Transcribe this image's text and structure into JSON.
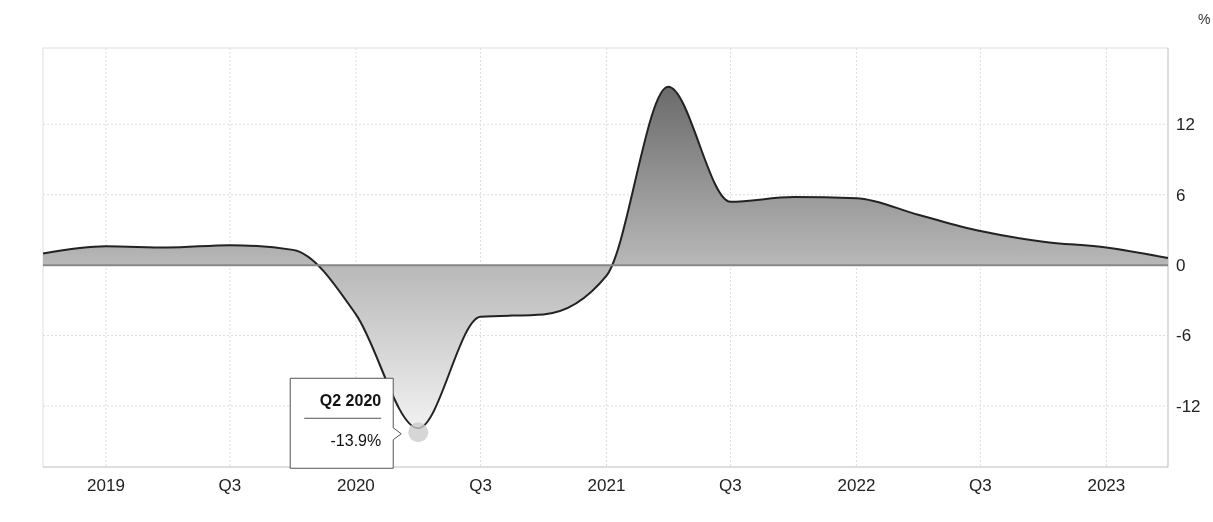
{
  "chart_data": {
    "type": "area",
    "ylabel": "%",
    "x": [
      "2018-10",
      "2019-01",
      "2019-04",
      "2019-07",
      "2019-10",
      "2020-01",
      "2020-04",
      "2020-07",
      "2020-10",
      "2021-01",
      "2021-04",
      "2021-07",
      "2021-10",
      "2022-01",
      "2022-04",
      "2022-07",
      "2022-10",
      "2023-01",
      "2023-04"
    ],
    "series": [
      {
        "color": "#222222",
        "values": [
          1.0,
          1.6,
          1.5,
          1.7,
          1.3,
          -4.2,
          -13.9,
          -4.4,
          -4.2,
          -0.9,
          15.2,
          5.4,
          5.8,
          5.7,
          4.3,
          2.9,
          2.0,
          1.5,
          0.6
        ]
      }
    ],
    "xlim": [
      "2018-10",
      "2023-04"
    ],
    "xticks": [
      {
        "value": "2019-01",
        "label": "2019"
      },
      {
        "value": "2019-07",
        "label": "Q3"
      },
      {
        "value": "2020-01",
        "label": "2020"
      },
      {
        "value": "2020-07",
        "label": "Q3"
      },
      {
        "value": "2021-01",
        "label": "2021"
      },
      {
        "value": "2021-07",
        "label": "Q3"
      },
      {
        "value": "2022-01",
        "label": "2022"
      },
      {
        "value": "2022-07",
        "label": "Q3"
      },
      {
        "value": "2023-01",
        "label": "2023"
      }
    ],
    "ylim": [
      -17.2,
      18.5
    ],
    "yticks": [
      -12,
      -6,
      0,
      6,
      12
    ],
    "grid": true,
    "annotations": [
      {
        "text": "Q2 2020",
        "x": "2020-04",
        "y": -13.9
      },
      "-13.9%"
    ]
  }
}
